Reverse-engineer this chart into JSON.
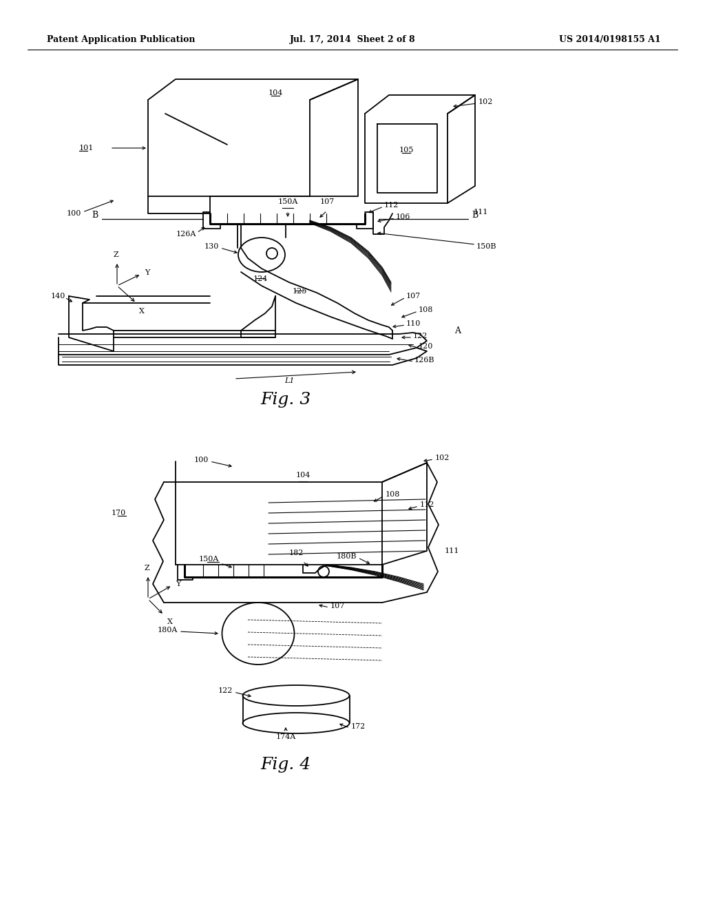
{
  "background_color": "#ffffff",
  "header_left": "Patent Application Publication",
  "header_center": "Jul. 17, 2014  Sheet 2 of 8",
  "header_right": "US 2014/0198155 A1",
  "fig3_caption": "Fig. 3",
  "fig4_caption": "Fig. 4",
  "line_color": "#000000",
  "text_color": "#000000"
}
